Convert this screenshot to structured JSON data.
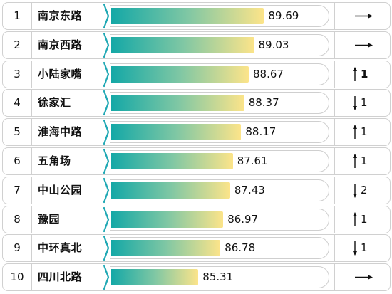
{
  "colors": {
    "bar_start": "#14a8a6",
    "bar_mid": "#7fc7a4",
    "bar_end": "#fce48a",
    "chevron": "#1fa8b4",
    "border": "#d0d0d0"
  },
  "chart_data": {
    "type": "bar",
    "orientation": "horizontal",
    "title": "",
    "xlim": [
      79.5,
      91.0
    ],
    "categories": [
      "南京东路",
      "南京西路",
      "小陆家嘴",
      "徐家汇",
      "淮海中路",
      "五角场",
      "中山公园",
      "豫园",
      "中环真北",
      "四川北路"
    ],
    "ranks": [
      "1",
      "2",
      "3",
      "4",
      "5",
      "6",
      "7",
      "8",
      "9",
      "10"
    ],
    "values": [
      89.69,
      89.03,
      88.67,
      88.37,
      88.17,
      87.61,
      87.43,
      86.97,
      86.78,
      85.31
    ],
    "value_labels": [
      "89.69",
      "89.03",
      "88.67",
      "88.37",
      "88.17",
      "87.61",
      "87.43",
      "86.97",
      "86.78",
      "85.31"
    ],
    "trend": [
      "flat",
      "flat",
      "up",
      "down",
      "up",
      "up",
      "down",
      "up",
      "down",
      "flat"
    ],
    "trend_change": [
      "",
      "",
      "1",
      "1",
      "1",
      "1",
      "2",
      "1",
      "1",
      ""
    ]
  }
}
